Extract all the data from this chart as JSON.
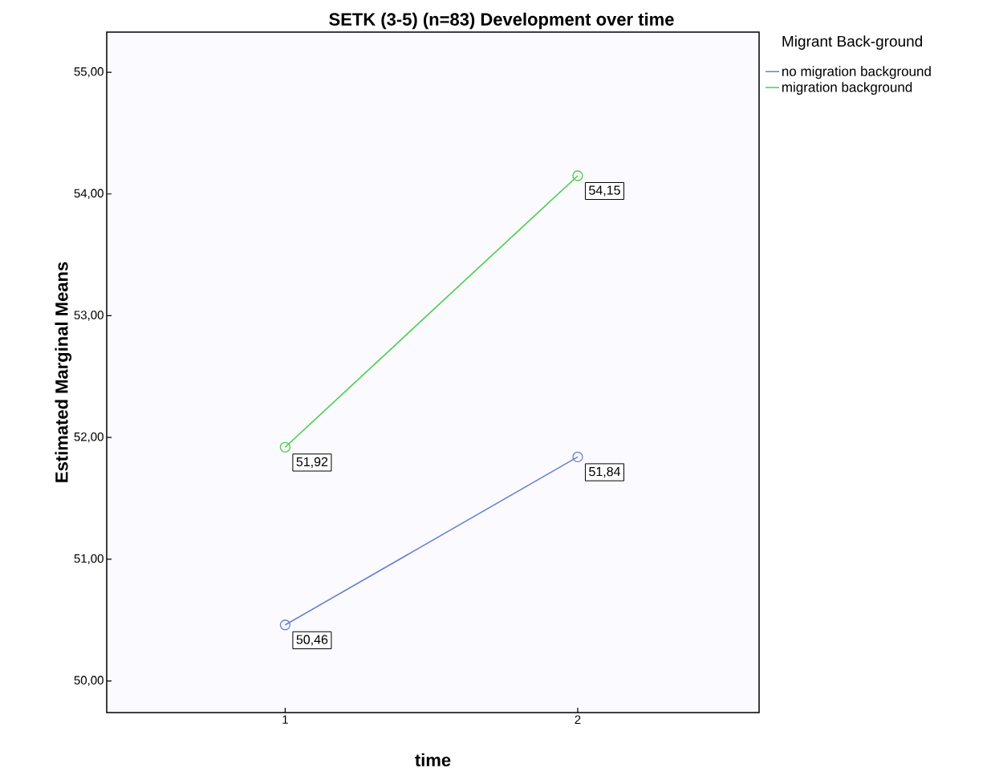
{
  "chart_data": {
    "type": "line",
    "title": "SETK (3-5) (n=83) Development over time",
    "xlabel": "time",
    "ylabel": "Estimated Marginal Means",
    "legend_title": "Migrant Back-ground",
    "categories": [
      "1",
      "2"
    ],
    "series": [
      {
        "name": "no migration background",
        "color": "#6a7fd0",
        "values": [
          50.46,
          51.84
        ],
        "value_labels": [
          "50,46",
          "51,84"
        ]
      },
      {
        "name": "migration background",
        "color": "#4ccf4c",
        "values": [
          51.92,
          54.15
        ],
        "value_labels": [
          "51,92",
          "54,15"
        ]
      }
    ],
    "ylim": [
      49.74,
      55.33
    ],
    "yticks": [
      {
        "value": 50,
        "label": "50,00"
      },
      {
        "value": 51,
        "label": "51,00"
      },
      {
        "value": 52,
        "label": "52,00"
      },
      {
        "value": 53,
        "label": "53,00"
      },
      {
        "value": 54,
        "label": "54,00"
      },
      {
        "value": 55,
        "label": "55,00"
      }
    ],
    "grid": false,
    "legend": "top right",
    "marker": "circle",
    "line_style": "solid"
  }
}
